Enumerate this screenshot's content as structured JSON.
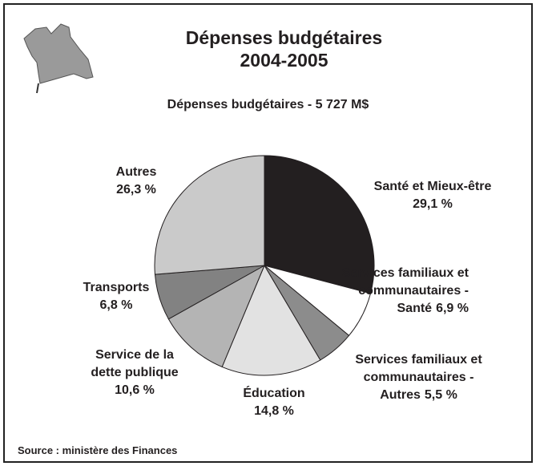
{
  "title": "Dépenses budgétaires",
  "subtitle": "2004-2005",
  "source": "Source : ministère des Finances",
  "chart_data": {
    "type": "pie",
    "title": "Dépenses budgétaires - 5 727 M$",
    "categories": [
      "Santé et Mieux-être",
      "Services familiaux et communautaires - Santé",
      "Services familiaux et communautaires - Autres",
      "Éducation",
      "Service de la dette publique",
      "Transports",
      "Autres"
    ],
    "values": [
      29.1,
      6.9,
      5.5,
      14.8,
      10.6,
      6.8,
      26.3
    ],
    "value_labels": [
      "29,1 %",
      "6,9 %",
      "5,5 %",
      "14,8 %",
      "10,6 %",
      "6,8 %",
      "26,3 %"
    ],
    "colors": [
      "#231f20",
      "#ffffff",
      "#8c8c8c",
      "#e2e2e2",
      "#b4b4b4",
      "#828282",
      "#cacaca"
    ]
  }
}
